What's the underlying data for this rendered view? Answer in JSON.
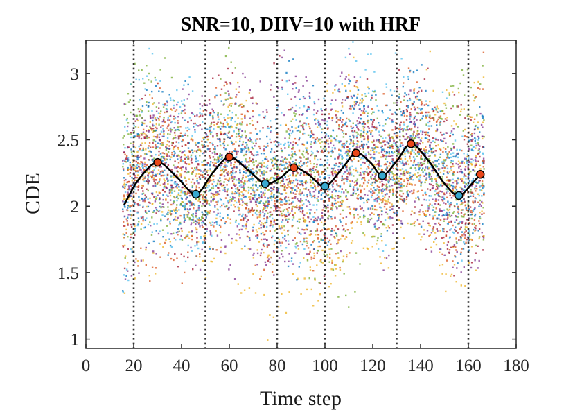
{
  "chart_data": {
    "type": "scatter",
    "title": "SNR=10, DIIV=10 with HRF",
    "xlabel": "Time step",
    "ylabel": "CDE",
    "xlim": [
      0,
      180
    ],
    "ylim": [
      0.93,
      3.25
    ],
    "x_ticks": [
      "0",
      "20",
      "40",
      "60",
      "80",
      "100",
      "120",
      "140",
      "160",
      "180"
    ],
    "y_ticks": [
      "1",
      "1.5",
      "2",
      "2.5",
      "3"
    ],
    "grid": false,
    "legend": "none",
    "vertical_lines": [
      20,
      50,
      80,
      100,
      130,
      160
    ],
    "scatter_cloud": {
      "x_range": [
        16,
        166
      ],
      "mean_curve": "same as series[0]",
      "spread_sd": 0.32,
      "colors": [
        "#0072BD",
        "#D95319",
        "#EDB120",
        "#7E2F8E",
        "#77AC30",
        "#4DBEEE",
        "#A2142F"
      ]
    },
    "series": [
      {
        "type": "line",
        "color": "#000000",
        "x": [
          16,
          22,
          30,
          38,
          46,
          53,
          60,
          68,
          75,
          81,
          87,
          93,
          100,
          107,
          113,
          119,
          124,
          130,
          136,
          143,
          150,
          156,
          162,
          165
        ],
        "y": [
          2.01,
          2.2,
          2.33,
          2.22,
          2.09,
          2.25,
          2.37,
          2.27,
          2.17,
          2.21,
          2.29,
          2.24,
          2.15,
          2.28,
          2.4,
          2.33,
          2.23,
          2.34,
          2.47,
          2.35,
          2.17,
          2.08,
          2.18,
          2.24
        ]
      },
      {
        "type": "scatter",
        "marker": "peak",
        "color": "#E8471A",
        "x": [
          30,
          60,
          87,
          113,
          136,
          165
        ],
        "y": [
          2.33,
          2.37,
          2.29,
          2.4,
          2.47,
          2.24
        ]
      },
      {
        "type": "scatter",
        "marker": "trough",
        "color": "#38A8CF",
        "x": [
          46,
          75,
          100,
          124,
          156
        ],
        "y": [
          2.09,
          2.17,
          2.15,
          2.23,
          2.08
        ]
      }
    ]
  }
}
